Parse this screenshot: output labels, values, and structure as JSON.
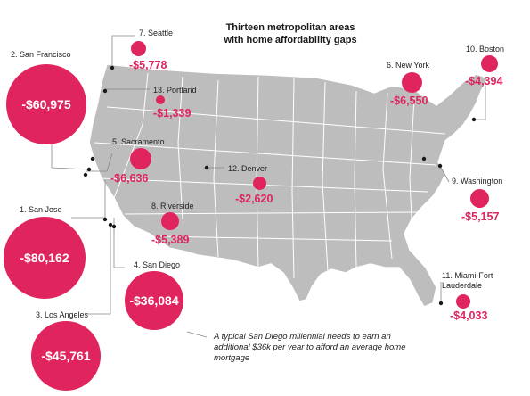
{
  "title": {
    "line1": "Thirteen metropolitan areas",
    "line2": "with home affordability gaps"
  },
  "colors": {
    "accent": "#e0245e",
    "map_fill": "#bdbdbd",
    "state_border": "#ffffff",
    "leader_line": "#888888"
  },
  "cities": [
    {
      "id": "seattle",
      "label": "7. Seattle",
      "gap": "-$5,778"
    },
    {
      "id": "san-francisco",
      "label": "2. San Francisco",
      "gap": "-$60,975"
    },
    {
      "id": "portland",
      "label": "13. Portland",
      "gap": "-$1,339"
    },
    {
      "id": "new-york",
      "label": "6. New York",
      "gap": "-$6,550"
    },
    {
      "id": "boston",
      "label": "10. Boston",
      "gap": "-$4,394"
    },
    {
      "id": "sacramento",
      "label": "5. Sacramento",
      "gap": "-$6,636"
    },
    {
      "id": "denver",
      "label": "12. Denver",
      "gap": "-$2,620"
    },
    {
      "id": "washington",
      "label": "9. Washington",
      "gap": "-$5,157"
    },
    {
      "id": "san-jose",
      "label": "1. San Jose",
      "gap": "-$80,162"
    },
    {
      "id": "riverside",
      "label": "8. Riverside",
      "gap": "-$5,389"
    },
    {
      "id": "san-diego",
      "label": "4. San Diego",
      "gap": "-$36,084"
    },
    {
      "id": "miami",
      "label": "11. Miami-Fort Lauderdale",
      "gap": "-$4,033"
    },
    {
      "id": "los-angeles",
      "label": "3. Los Angeles",
      "gap": "-$45,761"
    }
  ],
  "annotation": "A typical San Diego millennial needs to earn an additional $36k per year to afford an average home mortgage"
}
